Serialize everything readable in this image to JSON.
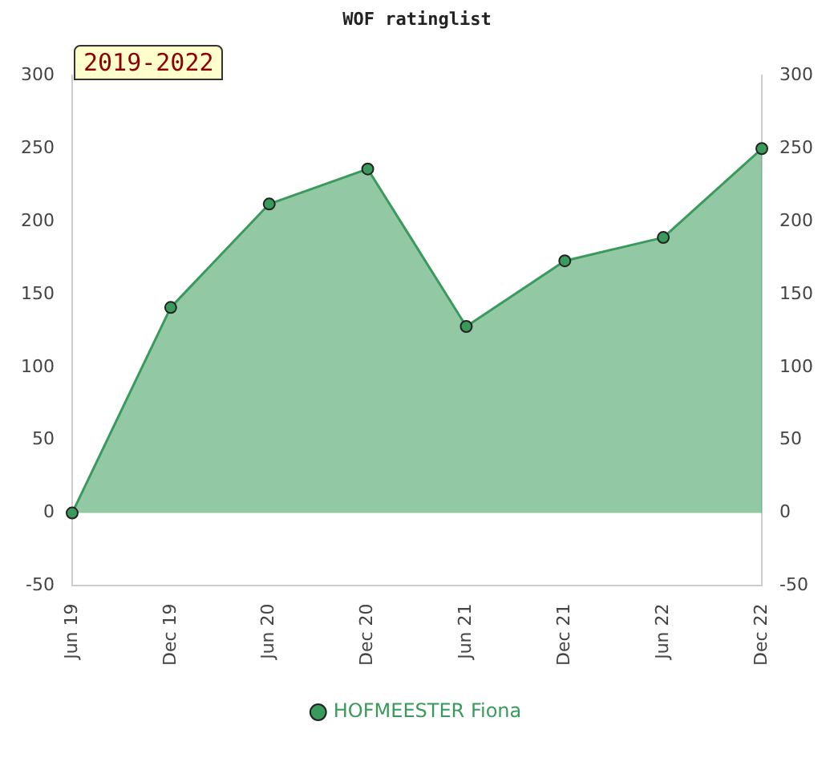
{
  "chart_data": {
    "type": "area",
    "title": "WOF ratinglist",
    "categories": [
      "Jun 19",
      "Dec 19",
      "Jun 20",
      "Dec 20",
      "Jun 21",
      "Dec 21",
      "Jun 22",
      "Dec 22"
    ],
    "series": [
      {
        "name": "HOFMEESTER Fiona",
        "color": "#3a9a5b",
        "values": [
          0,
          141,
          212,
          236,
          128,
          173,
          189,
          250
        ]
      }
    ],
    "ylim": [
      -50,
      300
    ],
    "yticks": [
      -50,
      0,
      50,
      100,
      150,
      200,
      250,
      300
    ],
    "y2lim": [
      -50,
      300
    ],
    "y2ticks": [
      -50,
      0,
      50,
      100,
      150,
      200,
      250,
      300
    ],
    "annotations": [
      "2019-2022"
    ],
    "legend": "bottom",
    "marker": "circle",
    "grid": false
  }
}
